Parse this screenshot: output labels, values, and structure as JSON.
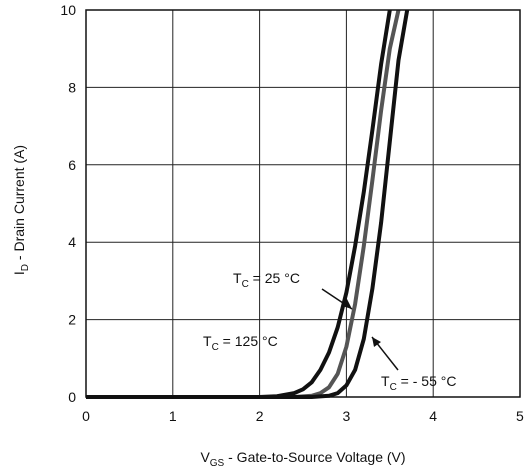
{
  "chart_data": {
    "type": "line",
    "xlabel": {
      "main": "V",
      "sub": "GS",
      "rest": " - Gate-to-Source Voltage (V)"
    },
    "ylabel": {
      "main": "I",
      "sub": "D",
      "rest": " - Drain Current (A)"
    },
    "xlim": [
      0,
      5
    ],
    "ylim": [
      0,
      10
    ],
    "xticks": [
      "0",
      "1",
      "2",
      "3",
      "4",
      "5"
    ],
    "yticks": [
      "0",
      "2",
      "4",
      "6",
      "8",
      "10"
    ],
    "grid": true,
    "series": [
      {
        "name": "TC = 125 °C",
        "color": "#111111",
        "x": [
          2.0,
          2.2,
          2.4,
          2.5,
          2.6,
          2.7,
          2.8,
          2.9,
          3.0,
          3.1,
          3.2,
          3.3,
          3.4,
          3.5
        ],
        "y": [
          0.0,
          0.02,
          0.1,
          0.2,
          0.38,
          0.7,
          1.15,
          1.8,
          2.7,
          3.9,
          5.3,
          6.9,
          8.6,
          10.0
        ]
      },
      {
        "name": "TC = 25 °C",
        "color": "#555555",
        "x": [
          2.4,
          2.6,
          2.7,
          2.8,
          2.9,
          3.0,
          3.1,
          3.2,
          3.3,
          3.4,
          3.5,
          3.6
        ],
        "y": [
          0.0,
          0.03,
          0.1,
          0.25,
          0.6,
          1.3,
          2.4,
          3.9,
          5.6,
          7.4,
          9.0,
          10.0
        ]
      },
      {
        "name": "TC = - 55 °C",
        "color": "#111111",
        "x": [
          2.6,
          2.8,
          2.9,
          3.0,
          3.1,
          3.2,
          3.3,
          3.4,
          3.5,
          3.6,
          3.7
        ],
        "y": [
          0.0,
          0.03,
          0.1,
          0.3,
          0.7,
          1.5,
          2.8,
          4.5,
          6.6,
          8.7,
          10.0
        ]
      }
    ],
    "annotations": [
      {
        "main": "T",
        "sub": "C",
        "rest": " = 25 °C"
      },
      {
        "main": "T",
        "sub": "C",
        "rest": " = 125 °C"
      },
      {
        "main": "T",
        "sub": "C",
        "rest": " = - 55 °C"
      }
    ]
  }
}
